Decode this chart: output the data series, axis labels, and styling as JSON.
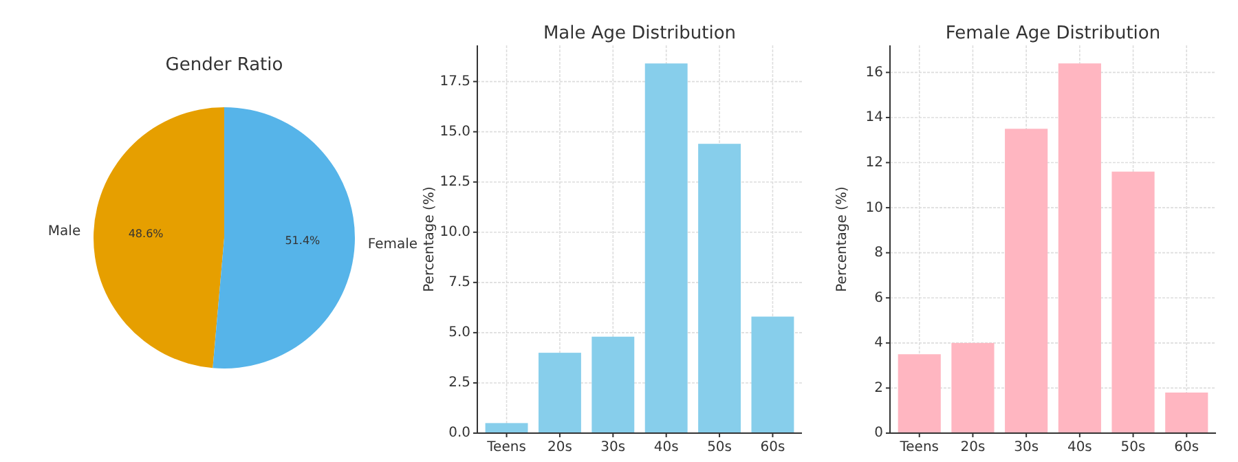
{
  "chart_data": [
    {
      "type": "pie",
      "title": "Gender Ratio",
      "categories": [
        "Male",
        "Female"
      ],
      "values": [
        48.6,
        51.4
      ],
      "colors": [
        "#e69f00",
        "#56b4e9"
      ],
      "value_labels": [
        "48.6%",
        "51.4%"
      ]
    },
    {
      "type": "bar",
      "title": "Male Age Distribution",
      "ylabel": "Percentage (%)",
      "categories": [
        "Teens",
        "20s",
        "30s",
        "40s",
        "50s",
        "60s"
      ],
      "values": [
        0.5,
        4.0,
        4.8,
        18.4,
        14.4,
        5.8
      ],
      "color": "#87ceeb",
      "ylim": [
        0,
        19.3
      ],
      "yticks": [
        {
          "value": 0,
          "label": "0.0"
        },
        {
          "value": 2.5,
          "label": "2.5"
        },
        {
          "value": 5,
          "label": "5.0"
        },
        {
          "value": 7.5,
          "label": "7.5"
        },
        {
          "value": 10,
          "label": "10.0"
        },
        {
          "value": 12.5,
          "label": "12.5"
        },
        {
          "value": 15,
          "label": "15.0"
        },
        {
          "value": 17.5,
          "label": "17.5"
        }
      ],
      "grid": true
    },
    {
      "type": "bar",
      "title": "Female Age Distribution",
      "ylabel": "Percentage (%)",
      "categories": [
        "Teens",
        "20s",
        "30s",
        "40s",
        "50s",
        "60s"
      ],
      "values": [
        3.5,
        4.0,
        13.5,
        16.4,
        11.6,
        1.8
      ],
      "color": "#ffb6c1",
      "ylim": [
        0,
        17.2
      ],
      "yticks": [
        0,
        2,
        4,
        6,
        8,
        10,
        12,
        14,
        16
      ],
      "grid": true
    }
  ]
}
